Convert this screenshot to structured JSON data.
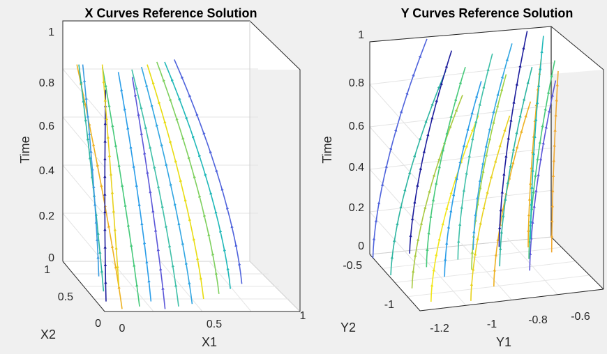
{
  "figure": {
    "background": "#f0f0f0"
  },
  "chart_data": [
    {
      "type": "line",
      "title": "X Curves Reference Solution",
      "xlabel": "X1",
      "ylabel": "X2",
      "zlabel": "Time",
      "xlim": [
        0,
        1
      ],
      "ylim": [
        0,
        1
      ],
      "zlim": [
        0,
        1
      ],
      "xticks": [
        "0",
        "0.5",
        "1"
      ],
      "yticks": [
        "0",
        "0.5",
        "1"
      ],
      "zticks": [
        "0",
        "0.2",
        "0.4",
        "0.6",
        "0.8",
        "1"
      ],
      "grid": true,
      "series": [
        {
          "color": "#EDB120",
          "x": [
            0.1,
            0.04
          ],
          "y": [
            0.05,
            0.85
          ],
          "z": [
            0.0,
            0.85
          ]
        },
        {
          "color": "#2CB5A0",
          "x": [
            0.08,
            0.05
          ],
          "y": [
            0.4,
            0.85
          ],
          "z": [
            0.0,
            0.85
          ]
        },
        {
          "color": "#3A9BE0",
          "x": [
            0.12,
            0.07
          ],
          "y": [
            0.7,
            0.85
          ],
          "z": [
            0.0,
            0.85
          ]
        },
        {
          "color": "#1C1C9C",
          "x": [
            0.05,
            0.08
          ],
          "y": [
            0.2,
            0.35
          ],
          "z": [
            0.0,
            0.85
          ]
        },
        {
          "color": "#45C97A",
          "x": [
            0.2,
            0.16
          ],
          "y": [
            0.1,
            0.8
          ],
          "z": [
            0.0,
            0.85
          ]
        },
        {
          "color": "#E8D21E",
          "x": [
            0.18,
            0.17
          ],
          "y": [
            0.5,
            0.85
          ],
          "z": [
            0.0,
            0.85
          ]
        },
        {
          "color": "#2A9DE8",
          "x": [
            0.28,
            0.22
          ],
          "y": [
            0.2,
            0.7
          ],
          "z": [
            0.0,
            0.85
          ]
        },
        {
          "color": "#5B56D8",
          "x": [
            0.32,
            0.27
          ],
          "y": [
            0.05,
            0.6
          ],
          "z": [
            0.0,
            0.85
          ]
        },
        {
          "color": "#3FC0A8",
          "x": [
            0.4,
            0.3
          ],
          "y": [
            0.1,
            0.75
          ],
          "z": [
            0.0,
            0.85
          ]
        },
        {
          "color": "#31A6E2",
          "x": [
            0.48,
            0.36
          ],
          "y": [
            0.15,
            0.8
          ],
          "z": [
            0.0,
            0.85
          ]
        },
        {
          "color": "#E8DC10",
          "x": [
            0.56,
            0.4
          ],
          "y": [
            0.25,
            0.85
          ],
          "z": [
            0.0,
            0.85
          ]
        },
        {
          "color": "#7ED05E",
          "x": [
            0.66,
            0.46
          ],
          "y": [
            0.35,
            0.9
          ],
          "z": [
            0.0,
            0.85
          ]
        },
        {
          "color": "#1FB8B8",
          "x": [
            0.74,
            0.5
          ],
          "y": [
            0.45,
            0.9
          ],
          "z": [
            0.0,
            0.85
          ]
        },
        {
          "color": "#4F63DC",
          "x": [
            0.82,
            0.56
          ],
          "y": [
            0.55,
            0.95
          ],
          "z": [
            0.0,
            0.85
          ]
        }
      ]
    },
    {
      "type": "line",
      "title": "Y Curves Reference Solution",
      "xlabel": "Y1",
      "ylabel": "Y2",
      "zlabel": "Time",
      "xlim": [
        -1.35,
        -0.5
      ],
      "ylim": [
        -1.3,
        -0.5
      ],
      "zlim": [
        0,
        1
      ],
      "xticks": [
        "-1.2",
        "-1",
        "-0.8",
        "-0.6"
      ],
      "yticks": [
        "-1",
        "-0.5"
      ],
      "zticks": [
        "0",
        "0.2",
        "0.4",
        "0.6",
        "0.8",
        "1"
      ],
      "grid": true,
      "series": [
        {
          "color": "#4F63DC",
          "x": [
            -1.35,
            -1.1
          ],
          "y": [
            -0.55,
            -0.55
          ],
          "z": [
            0.0,
            1.0
          ]
        },
        {
          "color": "#2CB5A0",
          "x": [
            -1.34,
            -1.1
          ],
          "y": [
            -0.8,
            -0.85
          ],
          "z": [
            0.0,
            0.95
          ]
        },
        {
          "color": "#A8C940",
          "x": [
            -1.3,
            -1.08
          ],
          "y": [
            -1.0,
            -1.05
          ],
          "z": [
            0.0,
            0.9
          ]
        },
        {
          "color": "#F2E61A",
          "x": [
            -1.27,
            -1.05
          ],
          "y": [
            -1.2,
            -1.2
          ],
          "z": [
            0.0,
            0.85
          ]
        },
        {
          "color": "#1C1C9C",
          "x": [
            -1.18,
            -1.0
          ],
          "y": [
            -0.55,
            -0.6
          ],
          "z": [
            0.0,
            0.95
          ]
        },
        {
          "color": "#45C97A",
          "x": [
            -1.16,
            -0.98
          ],
          "y": [
            -0.75,
            -0.75
          ],
          "z": [
            0.0,
            0.92
          ]
        },
        {
          "color": "#2A9DE8",
          "x": [
            -1.12,
            -0.95
          ],
          "y": [
            -0.9,
            -0.9
          ],
          "z": [
            0.0,
            0.9
          ]
        },
        {
          "color": "#E8D21E",
          "x": [
            -1.1,
            -0.92
          ],
          "y": [
            -1.25,
            -1.25
          ],
          "z": [
            0.0,
            0.85
          ]
        },
        {
          "color": "#3FC0A8",
          "x": [
            -1.0,
            -0.84
          ],
          "y": [
            -0.7,
            -0.7
          ],
          "z": [
            0.0,
            0.95
          ]
        },
        {
          "color": "#9ED244",
          "x": [
            -0.98,
            -0.82
          ],
          "y": [
            -0.85,
            -0.85
          ],
          "z": [
            0.0,
            0.9
          ]
        },
        {
          "color": "#EDB120",
          "x": [
            -0.95,
            -0.78
          ],
          "y": [
            -1.1,
            -1.1
          ],
          "z": [
            0.0,
            0.85
          ]
        },
        {
          "color": "#31A6E2",
          "x": [
            -0.9,
            -0.72
          ],
          "y": [
            -0.6,
            -0.6
          ],
          "z": [
            0.0,
            0.95
          ]
        },
        {
          "color": "#2CB5A0",
          "x": [
            -0.85,
            -0.7
          ],
          "y": [
            -0.85,
            -0.85
          ],
          "z": [
            0.0,
            0.92
          ]
        },
        {
          "color": "#1C1C9C",
          "x": [
            -0.78,
            -0.65
          ],
          "y": [
            -0.6,
            -0.6
          ],
          "z": [
            0.0,
            1.0
          ]
        },
        {
          "color": "#5B56D8",
          "x": [
            -0.74,
            -0.62
          ],
          "y": [
            -0.95,
            -0.95
          ],
          "z": [
            0.0,
            0.88
          ]
        },
        {
          "color": "#45C97A",
          "x": [
            -0.7,
            -0.58
          ],
          "y": [
            -0.8,
            -0.8
          ],
          "z": [
            0.0,
            0.92
          ]
        },
        {
          "color": "#EDB120",
          "x": [
            -0.66,
            -0.6
          ],
          "y": [
            -0.65,
            -0.65
          ],
          "z": [
            0.0,
            0.88
          ]
        },
        {
          "color": "#1FB8B8",
          "x": [
            -0.62,
            -0.56
          ],
          "y": [
            -0.55,
            -0.55
          ],
          "z": [
            0.0,
            0.95
          ]
        },
        {
          "color": "#F0A830",
          "x": [
            -0.58,
            -0.55
          ],
          "y": [
            -0.75,
            -0.75
          ],
          "z": [
            0.0,
            0.85
          ]
        }
      ]
    }
  ]
}
